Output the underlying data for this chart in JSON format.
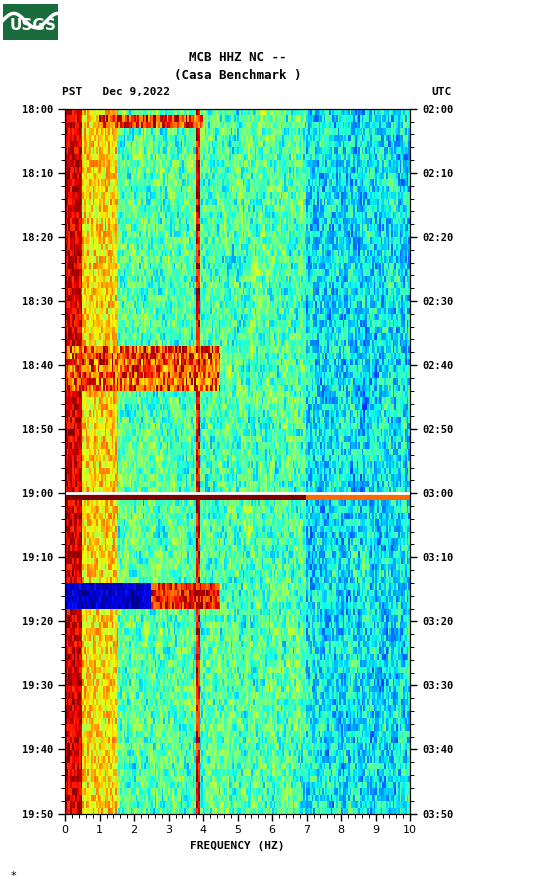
{
  "title_line1": "MCB HHZ NC --",
  "title_line2": "(Casa Benchmark )",
  "left_label": "PST   Dec 9,2022",
  "right_label": "UTC",
  "freq_label": "FREQUENCY (HZ)",
  "freq_min": 0,
  "freq_max": 10,
  "y_ticks_pst": [
    "18:00",
    "18:10",
    "18:20",
    "18:30",
    "18:40",
    "18:50",
    "19:00",
    "19:10",
    "19:20",
    "19:30",
    "19:40",
    "19:50"
  ],
  "y_ticks_utc": [
    "02:00",
    "02:10",
    "02:20",
    "02:30",
    "02:40",
    "02:50",
    "03:00",
    "03:10",
    "03:20",
    "03:30",
    "03:40",
    "03:50"
  ],
  "x_ticks": [
    0,
    1,
    2,
    3,
    4,
    5,
    6,
    7,
    8,
    9,
    10
  ],
  "bg_color": "#ffffff",
  "usgs_green": "#1a6b3c",
  "seed": 42,
  "n_time": 110,
  "n_freq": 200
}
